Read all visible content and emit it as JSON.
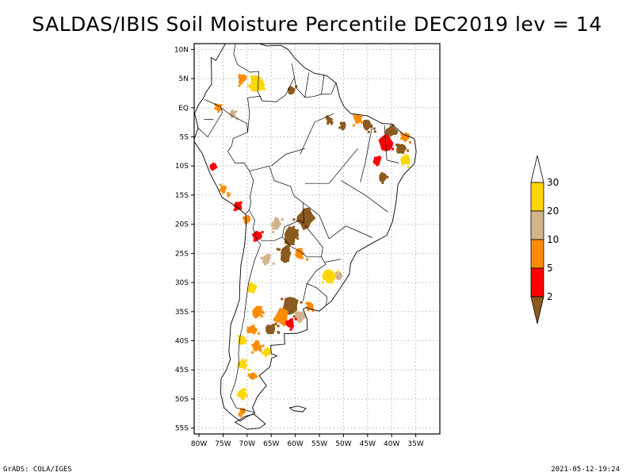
{
  "title": "SALDAS/IBIS Soil Moisture Percentile DEC2019 lev = 14",
  "footer": {
    "left": "GrADS: COLA/IGES",
    "right": "2021-05-12-19:24"
  },
  "map": {
    "lon_range": [
      -81,
      -30
    ],
    "lat_range": [
      -56,
      11
    ],
    "x_ticks": [
      {
        "lon": -80,
        "label": "80W"
      },
      {
        "lon": -75,
        "label": "75W"
      },
      {
        "lon": -70,
        "label": "70W"
      },
      {
        "lon": -65,
        "label": "65W"
      },
      {
        "lon": -60,
        "label": "60W"
      },
      {
        "lon": -55,
        "label": "55W"
      },
      {
        "lon": -50,
        "label": "50W"
      },
      {
        "lon": -45,
        "label": "45W"
      },
      {
        "lon": -40,
        "label": "40W"
      },
      {
        "lon": -35,
        "label": "35W"
      }
    ],
    "y_ticks": [
      {
        "lat": 10,
        "label": "10N"
      },
      {
        "lat": 5,
        "label": "5N"
      },
      {
        "lat": 0,
        "label": "EQ"
      },
      {
        "lat": -5,
        "label": "5S"
      },
      {
        "lat": -10,
        "label": "10S"
      },
      {
        "lat": -15,
        "label": "15S"
      },
      {
        "lat": -20,
        "label": "20S"
      },
      {
        "lat": -25,
        "label": "25S"
      },
      {
        "lat": -30,
        "label": "30S"
      },
      {
        "lat": -35,
        "label": "35S"
      },
      {
        "lat": -40,
        "label": "40S"
      },
      {
        "lat": -45,
        "label": "45S"
      },
      {
        "lat": -50,
        "label": "50S"
      },
      {
        "lat": -55,
        "label": "55S"
      }
    ],
    "grid": true
  },
  "colorbar": {
    "levels": [
      "2",
      "5",
      "10",
      "20",
      "30"
    ],
    "colors": {
      "below_2": "#8b5a1e",
      "2_5": "#ff0000",
      "5_10": "#ff8c00",
      "10_20": "#d2b48c",
      "20_30": "#ffd700",
      "above_30": "#ffffff"
    }
  },
  "colors": {
    "brown": "#8b5a1e",
    "red": "#ff0000",
    "orange": "#ff8c00",
    "tan": "#d2b48c",
    "yellow": "#ffd700"
  },
  "regions": [
    {
      "cat": "yellow",
      "lon": -68,
      "lat": 4,
      "size": 1.8
    },
    {
      "cat": "orange",
      "lon": -71,
      "lat": 5,
      "size": 1.0
    },
    {
      "cat": "orange",
      "lon": -76,
      "lat": 0,
      "size": 0.8
    },
    {
      "cat": "tan",
      "lon": -73,
      "lat": -1,
      "size": 0.7
    },
    {
      "cat": "brown",
      "lon": -61,
      "lat": 3,
      "size": 0.8
    },
    {
      "cat": "brown",
      "lon": -53,
      "lat": -2,
      "size": 0.7
    },
    {
      "cat": "brown",
      "lon": -50,
      "lat": -3,
      "size": 0.8
    },
    {
      "cat": "orange",
      "lon": -47,
      "lat": -2,
      "size": 1.0
    },
    {
      "cat": "brown",
      "lon": -45,
      "lat": -3,
      "size": 1.1
    },
    {
      "cat": "red",
      "lon": -41,
      "lat": -6,
      "size": 1.5
    },
    {
      "cat": "brown",
      "lon": -40,
      "lat": -4,
      "size": 1.2
    },
    {
      "cat": "brown",
      "lon": -38,
      "lat": -7,
      "size": 1.1
    },
    {
      "cat": "orange",
      "lon": -37,
      "lat": -5,
      "size": 1.0
    },
    {
      "cat": "yellow",
      "lon": -37,
      "lat": -9,
      "size": 1.0
    },
    {
      "cat": "red",
      "lon": -43,
      "lat": -9,
      "size": 0.9
    },
    {
      "cat": "brown",
      "lon": -42,
      "lat": -12,
      "size": 0.9
    },
    {
      "cat": "red",
      "lon": -77,
      "lat": -10,
      "size": 0.8
    },
    {
      "cat": "orange",
      "lon": -75,
      "lat": -14,
      "size": 0.9
    },
    {
      "cat": "red",
      "lon": -72,
      "lat": -17,
      "size": 0.9
    },
    {
      "cat": "orange",
      "lon": -70,
      "lat": -19,
      "size": 0.9
    },
    {
      "cat": "red",
      "lon": -68,
      "lat": -22,
      "size": 1.0
    },
    {
      "cat": "brown",
      "lon": -58,
      "lat": -19,
      "size": 2.1
    },
    {
      "cat": "brown",
      "lon": -61,
      "lat": -22,
      "size": 1.6
    },
    {
      "cat": "tan",
      "lon": -64,
      "lat": -20,
      "size": 1.2
    },
    {
      "cat": "brown",
      "lon": -62,
      "lat": -25,
      "size": 1.6
    },
    {
      "cat": "orange",
      "lon": -59,
      "lat": -25,
      "size": 1.0
    },
    {
      "cat": "tan",
      "lon": -66,
      "lat": -26,
      "size": 1.0
    },
    {
      "cat": "yellow",
      "lon": -53,
      "lat": -29,
      "size": 1.3
    },
    {
      "cat": "tan",
      "lon": -51,
      "lat": -29,
      "size": 0.9
    },
    {
      "cat": "orange",
      "lon": -57,
      "lat": -34,
      "size": 0.8
    },
    {
      "cat": "brown",
      "lon": -61,
      "lat": -34,
      "size": 1.6
    },
    {
      "cat": "orange",
      "lon": -63,
      "lat": -36,
      "size": 1.6
    },
    {
      "cat": "tan",
      "lon": -59,
      "lat": -36,
      "size": 1.2
    },
    {
      "cat": "red",
      "lon": -61,
      "lat": -37,
      "size": 1.0
    },
    {
      "cat": "brown",
      "lon": -65,
      "lat": -38,
      "size": 1.1
    },
    {
      "cat": "orange",
      "lon": -68,
      "lat": -35,
      "size": 1.2
    },
    {
      "cat": "yellow",
      "lon": -69,
      "lat": -31,
      "size": 1.0
    },
    {
      "cat": "orange",
      "lon": -69,
      "lat": -38,
      "size": 1.0
    },
    {
      "cat": "yellow",
      "lon": -71,
      "lat": -40,
      "size": 1.0
    },
    {
      "cat": "orange",
      "lon": -68,
      "lat": -41,
      "size": 1.0
    },
    {
      "cat": "yellow",
      "lon": -66,
      "lat": -42,
      "size": 0.9
    },
    {
      "cat": "yellow",
      "lon": -71,
      "lat": -44,
      "size": 1.0
    },
    {
      "cat": "orange",
      "lon": -69,
      "lat": -46,
      "size": 0.7
    },
    {
      "cat": "yellow",
      "lon": -71,
      "lat": -49,
      "size": 0.9
    },
    {
      "cat": "orange",
      "lon": -71,
      "lat": -52,
      "size": 0.7
    }
  ]
}
